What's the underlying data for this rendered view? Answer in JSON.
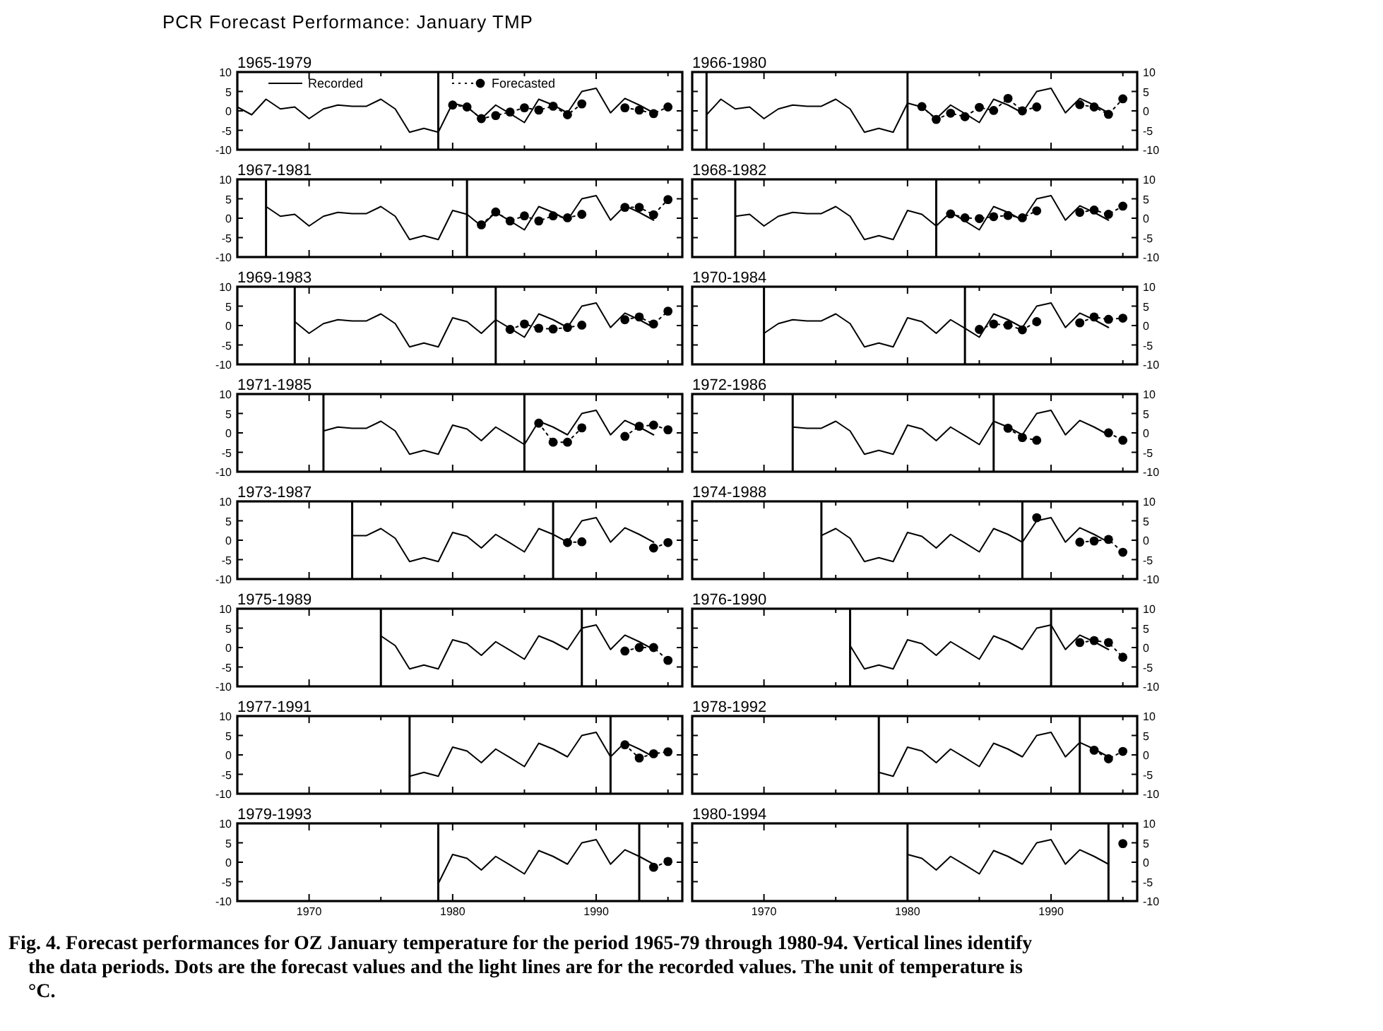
{
  "chart_data": [
    {
      "type": "line",
      "title": "1965-1979",
      "annotations": [
        "PCR Forecast Performance: January TMP"
      ],
      "legend": "top",
      "xlim": [
        1965,
        1996
      ],
      "xticks": [
        1970,
        1980,
        1990,
        {
          "value": 1965,
          "label": null
        },
        {
          "value": 1975,
          "label": null
        },
        {
          "value": 1985,
          "label": null
        },
        {
          "value": 1995,
          "label": null
        }
      ],
      "ylim": [
        -10,
        10
      ],
      "yticks": [
        -10,
        -5,
        0,
        5,
        10
      ],
      "tick_labels": "y",
      "ref_lines": [
        {
          "axis": "x",
          "value": 1979
        }
      ],
      "series": [
        {
          "name": "Recorded",
          "color": "#000000",
          "line_style": "solid",
          "marker": "none",
          "x": [
            1965,
            1966,
            1967,
            1968,
            1969,
            1970,
            1971,
            1972,
            1973,
            1974,
            1975,
            1976,
            1977,
            1978,
            1979,
            1980,
            1981,
            1982,
            1983,
            1984,
            1985,
            1986,
            1987,
            1988,
            1989,
            1990,
            1991,
            1992,
            1993,
            1994
          ],
          "values": [
            1,
            -1,
            3,
            0.5,
            1,
            -2,
            0.5,
            1.5,
            1.2,
            1.2,
            3,
            0.5,
            -5.5,
            -4.5,
            -5.5,
            2,
            1,
            -2,
            1.5,
            -0.7,
            -3,
            3,
            1.5,
            -0.5,
            5,
            5.8,
            -0.5,
            3.2,
            1.5,
            -0.5
          ]
        },
        {
          "name": "Forecasted",
          "color": "#000000",
          "line_style": "dotted",
          "marker": "circle",
          "x": [
            1980,
            1981,
            1982,
            1983,
            1984,
            1985,
            1986,
            1987,
            1988,
            1989,
            1990,
            1991,
            1992,
            1993,
            1994,
            1995
          ],
          "values": [
            1.5,
            1,
            -2,
            -1.2,
            -0.3,
            0.8,
            0.2,
            1.2,
            -1,
            1.8,
            null,
            null,
            0.8,
            0.2,
            -0.7,
            1
          ]
        }
      ]
    },
    {
      "type": "line",
      "title": "1966-1980",
      "xlim": [
        1965,
        1996
      ],
      "xticks": [
        1970,
        1980,
        1990,
        {
          "value": 1965,
          "label": null
        },
        {
          "value": 1975,
          "label": null
        },
        {
          "value": 1985,
          "label": null
        },
        {
          "value": 1995,
          "label": null
        }
      ],
      "ylim": [
        -10,
        10
      ],
      "yticks": [
        -10,
        -5,
        0,
        5,
        10
      ],
      "tick_labels": "y",
      "ref_lines": [
        {
          "axis": "x",
          "value": 1966
        },
        {
          "axis": "x",
          "value": 1980
        }
      ],
      "series": [
        {
          "color": "#000000",
          "line_style": "solid",
          "marker": "none",
          "x": [
            1966,
            1967,
            1968,
            1969,
            1970,
            1971,
            1972,
            1973,
            1974,
            1975,
            1976,
            1977,
            1978,
            1979,
            1980,
            1981,
            1982,
            1983,
            1984,
            1985,
            1986,
            1987,
            1988,
            1989,
            1990,
            1991,
            1992,
            1993,
            1994
          ],
          "values": [
            -1,
            3,
            0.5,
            1,
            -2,
            0.5,
            1.5,
            1.2,
            1.2,
            3,
            0.5,
            -5.5,
            -4.5,
            -5.5,
            2,
            1,
            -2,
            1.5,
            -0.7,
            -3,
            3,
            1.5,
            -0.5,
            5,
            5.8,
            -0.5,
            3.2,
            1.5,
            -0.5
          ]
        },
        {
          "color": "#000000",
          "line_style": "dotted",
          "marker": "circle",
          "x": [
            1981,
            1982,
            1983,
            1984,
            1985,
            1986,
            1987,
            1988,
            1989,
            1990,
            1991,
            1992,
            1993,
            1994,
            1995
          ],
          "values": [
            1.1,
            -2.2,
            -0.6,
            -1.5,
            0.9,
            0.1,
            3.2,
            0,
            1,
            null,
            null,
            1.6,
            1,
            -0.9,
            3.1
          ]
        }
      ]
    },
    {
      "type": "line",
      "title": "1967-1981",
      "xlim": [
        1965,
        1996
      ],
      "xticks": [
        1970,
        1980,
        1990,
        {
          "value": 1965,
          "label": null
        },
        {
          "value": 1975,
          "label": null
        },
        {
          "value": 1985,
          "label": null
        },
        {
          "value": 1995,
          "label": null
        }
      ],
      "ylim": [
        -10,
        10
      ],
      "yticks": [
        -10,
        -5,
        0,
        5,
        10
      ],
      "tick_labels": "y",
      "ref_lines": [
        {
          "axis": "x",
          "value": 1967
        },
        {
          "axis": "x",
          "value": 1981
        }
      ],
      "series": [
        {
          "color": "#000000",
          "line_style": "solid",
          "marker": "none",
          "x": [
            1967,
            1968,
            1969,
            1970,
            1971,
            1972,
            1973,
            1974,
            1975,
            1976,
            1977,
            1978,
            1979,
            1980,
            1981,
            1982,
            1983,
            1984,
            1985,
            1986,
            1987,
            1988,
            1989,
            1990,
            1991,
            1992,
            1993,
            1994
          ],
          "values": [
            3,
            0.5,
            1,
            -2,
            0.5,
            1.5,
            1.2,
            1.2,
            3,
            0.5,
            -5.5,
            -4.5,
            -5.5,
            2,
            1,
            -2,
            1.5,
            -0.7,
            -3,
            3,
            1.5,
            -0.5,
            5,
            5.8,
            -0.5,
            3.2,
            1.5,
            -0.5
          ]
        },
        {
          "color": "#000000",
          "line_style": "dotted",
          "marker": "circle",
          "x": [
            1982,
            1983,
            1984,
            1985,
            1986,
            1987,
            1988,
            1989,
            1990,
            1991,
            1992,
            1993,
            1994,
            1995
          ],
          "values": [
            -1.7,
            1.6,
            -0.7,
            0.6,
            -0.7,
            0.6,
            0.1,
            1,
            null,
            null,
            2.8,
            2.8,
            0.9,
            4.8
          ]
        }
      ]
    },
    {
      "type": "line",
      "title": "1968-1982",
      "xlim": [
        1965,
        1996
      ],
      "xticks": [
        1970,
        1980,
        1990,
        {
          "value": 1965,
          "label": null
        },
        {
          "value": 1975,
          "label": null
        },
        {
          "value": 1985,
          "label": null
        },
        {
          "value": 1995,
          "label": null
        }
      ],
      "ylim": [
        -10,
        10
      ],
      "yticks": [
        -10,
        -5,
        0,
        5,
        10
      ],
      "tick_labels": "y",
      "ref_lines": [
        {
          "axis": "x",
          "value": 1968
        },
        {
          "axis": "x",
          "value": 1982
        }
      ],
      "series": [
        {
          "color": "#000000",
          "line_style": "solid",
          "marker": "none",
          "x": [
            1968,
            1969,
            1970,
            1971,
            1972,
            1973,
            1974,
            1975,
            1976,
            1977,
            1978,
            1979,
            1980,
            1981,
            1982,
            1983,
            1984,
            1985,
            1986,
            1987,
            1988,
            1989,
            1990,
            1991,
            1992,
            1993,
            1994
          ],
          "values": [
            0.5,
            1,
            -2,
            0.5,
            1.5,
            1.2,
            1.2,
            3,
            0.5,
            -5.5,
            -4.5,
            -5.5,
            2,
            1,
            -2,
            1.5,
            -0.7,
            -3,
            3,
            1.5,
            -0.5,
            5,
            5.8,
            -0.5,
            3.2,
            1.5,
            -0.5
          ]
        },
        {
          "color": "#000000",
          "line_style": "dotted",
          "marker": "circle",
          "x": [
            1983,
            1984,
            1985,
            1986,
            1987,
            1988,
            1989,
            1990,
            1991,
            1992,
            1993,
            1994,
            1995
          ],
          "values": [
            1.1,
            0.1,
            -0.1,
            0.4,
            0.7,
            0.1,
            1.9,
            null,
            null,
            1.5,
            2.1,
            1,
            3.1
          ]
        }
      ]
    },
    {
      "type": "line",
      "title": "1969-1983",
      "xlim": [
        1965,
        1996
      ],
      "xticks": [
        1970,
        1980,
        1990,
        {
          "value": 1965,
          "label": null
        },
        {
          "value": 1975,
          "label": null
        },
        {
          "value": 1985,
          "label": null
        },
        {
          "value": 1995,
          "label": null
        }
      ],
      "ylim": [
        -10,
        10
      ],
      "yticks": [
        -10,
        -5,
        0,
        5,
        10
      ],
      "tick_labels": "y",
      "ref_lines": [
        {
          "axis": "x",
          "value": 1969
        },
        {
          "axis": "x",
          "value": 1983
        }
      ],
      "series": [
        {
          "color": "#000000",
          "line_style": "solid",
          "marker": "none",
          "x": [
            1969,
            1970,
            1971,
            1972,
            1973,
            1974,
            1975,
            1976,
            1977,
            1978,
            1979,
            1980,
            1981,
            1982,
            1983,
            1984,
            1985,
            1986,
            1987,
            1988,
            1989,
            1990,
            1991,
            1992,
            1993,
            1994
          ],
          "values": [
            1,
            -2,
            0.5,
            1.5,
            1.2,
            1.2,
            3,
            0.5,
            -5.5,
            -4.5,
            -5.5,
            2,
            1,
            -2,
            1.5,
            -0.7,
            -3,
            3,
            1.5,
            -0.5,
            5,
            5.8,
            -0.5,
            3.2,
            1.5,
            -0.5
          ]
        },
        {
          "color": "#000000",
          "line_style": "dotted",
          "marker": "circle",
          "x": [
            1984,
            1985,
            1986,
            1987,
            1988,
            1989,
            1990,
            1991,
            1992,
            1993,
            1994,
            1995
          ],
          "values": [
            -1,
            0.4,
            -0.7,
            -0.9,
            -0.5,
            0.1,
            null,
            null,
            1.5,
            2.2,
            0.4,
            3.7
          ]
        }
      ]
    },
    {
      "type": "line",
      "title": "1970-1984",
      "xlim": [
        1965,
        1996
      ],
      "xticks": [
        1970,
        1980,
        1990,
        {
          "value": 1965,
          "label": null
        },
        {
          "value": 1975,
          "label": null
        },
        {
          "value": 1985,
          "label": null
        },
        {
          "value": 1995,
          "label": null
        }
      ],
      "ylim": [
        -10,
        10
      ],
      "yticks": [
        -10,
        -5,
        0,
        5,
        10
      ],
      "tick_labels": "y",
      "ref_lines": [
        {
          "axis": "x",
          "value": 1970
        },
        {
          "axis": "x",
          "value": 1984
        }
      ],
      "series": [
        {
          "color": "#000000",
          "line_style": "solid",
          "marker": "none",
          "x": [
            1970,
            1971,
            1972,
            1973,
            1974,
            1975,
            1976,
            1977,
            1978,
            1979,
            1980,
            1981,
            1982,
            1983,
            1984,
            1985,
            1986,
            1987,
            1988,
            1989,
            1990,
            1991,
            1992,
            1993,
            1994
          ],
          "values": [
            -2,
            0.5,
            1.5,
            1.2,
            1.2,
            3,
            0.5,
            -5.5,
            -4.5,
            -5.5,
            2,
            1,
            -2,
            1.5,
            -0.7,
            -3,
            3,
            1.5,
            -0.5,
            5,
            5.8,
            -0.5,
            3.2,
            1.5,
            -0.5
          ]
        },
        {
          "color": "#000000",
          "line_style": "dotted",
          "marker": "circle",
          "x": [
            1985,
            1986,
            1987,
            1988,
            1989,
            1990,
            1991,
            1992,
            1993,
            1994,
            1995
          ],
          "values": [
            -1,
            0.4,
            0.1,
            -1.1,
            1,
            null,
            null,
            0.7,
            2.2,
            1.6,
            1.9
          ]
        }
      ]
    },
    {
      "type": "line",
      "title": "1971-1985",
      "xlim": [
        1965,
        1996
      ],
      "xticks": [
        1970,
        1980,
        1990,
        {
          "value": 1965,
          "label": null
        },
        {
          "value": 1975,
          "label": null
        },
        {
          "value": 1985,
          "label": null
        },
        {
          "value": 1995,
          "label": null
        }
      ],
      "ylim": [
        -10,
        10
      ],
      "yticks": [
        -10,
        -5,
        0,
        5,
        10
      ],
      "tick_labels": "y",
      "ref_lines": [
        {
          "axis": "x",
          "value": 1971
        },
        {
          "axis": "x",
          "value": 1985
        }
      ],
      "series": [
        {
          "color": "#000000",
          "line_style": "solid",
          "marker": "none",
          "x": [
            1971,
            1972,
            1973,
            1974,
            1975,
            1976,
            1977,
            1978,
            1979,
            1980,
            1981,
            1982,
            1983,
            1984,
            1985,
            1986,
            1987,
            1988,
            1989,
            1990,
            1991,
            1992,
            1993,
            1994
          ],
          "values": [
            0.5,
            1.5,
            1.2,
            1.2,
            3,
            0.5,
            -5.5,
            -4.5,
            -5.5,
            2,
            1,
            -2,
            1.5,
            -0.7,
            -3,
            3,
            1.5,
            -0.5,
            5,
            5.8,
            -0.5,
            3.2,
            1.5,
            -0.5
          ]
        },
        {
          "color": "#000000",
          "line_style": "dotted",
          "marker": "circle",
          "x": [
            1986,
            1987,
            1988,
            1989,
            1990,
            1991,
            1992,
            1993,
            1994,
            1995
          ],
          "values": [
            2.5,
            -2.4,
            -2.4,
            1.3,
            null,
            null,
            -0.9,
            1.7,
            2,
            0.8
          ]
        }
      ]
    },
    {
      "type": "line",
      "title": "1972-1986",
      "xlim": [
        1965,
        1996
      ],
      "xticks": [
        1970,
        1980,
        1990,
        {
          "value": 1965,
          "label": null
        },
        {
          "value": 1975,
          "label": null
        },
        {
          "value": 1985,
          "label": null
        },
        {
          "value": 1995,
          "label": null
        }
      ],
      "ylim": [
        -10,
        10
      ],
      "yticks": [
        -10,
        -5,
        0,
        5,
        10
      ],
      "tick_labels": "y",
      "ref_lines": [
        {
          "axis": "x",
          "value": 1972
        },
        {
          "axis": "x",
          "value": 1986
        }
      ],
      "series": [
        {
          "color": "#000000",
          "line_style": "solid",
          "marker": "none",
          "x": [
            1972,
            1973,
            1974,
            1975,
            1976,
            1977,
            1978,
            1979,
            1980,
            1981,
            1982,
            1983,
            1984,
            1985,
            1986,
            1987,
            1988,
            1989,
            1990,
            1991,
            1992,
            1993,
            1994
          ],
          "values": [
            1.5,
            1.2,
            1.2,
            3,
            0.5,
            -5.5,
            -4.5,
            -5.5,
            2,
            1,
            -2,
            1.5,
            -0.7,
            -3,
            3,
            1.5,
            -0.5,
            5,
            5.8,
            -0.5,
            3.2,
            1.5,
            -0.5
          ]
        },
        {
          "color": "#000000",
          "line_style": "dotted",
          "marker": "circle",
          "x": [
            1987,
            1988,
            1989,
            1990,
            1991,
            1992,
            1993,
            1994,
            1995
          ],
          "values": [
            1.2,
            -1.2,
            -1.9,
            null,
            null,
            null,
            null,
            0,
            -1.9
          ]
        }
      ]
    },
    {
      "type": "line",
      "title": "1973-1987",
      "xlim": [
        1965,
        1996
      ],
      "xticks": [
        1970,
        1980,
        1990,
        {
          "value": 1965,
          "label": null
        },
        {
          "value": 1975,
          "label": null
        },
        {
          "value": 1985,
          "label": null
        },
        {
          "value": 1995,
          "label": null
        }
      ],
      "ylim": [
        -10,
        10
      ],
      "yticks": [
        -10,
        -5,
        0,
        5,
        10
      ],
      "tick_labels": "y",
      "ref_lines": [
        {
          "axis": "x",
          "value": 1973
        },
        {
          "axis": "x",
          "value": 1987
        }
      ],
      "series": [
        {
          "color": "#000000",
          "line_style": "solid",
          "marker": "none",
          "x": [
            1973,
            1974,
            1975,
            1976,
            1977,
            1978,
            1979,
            1980,
            1981,
            1982,
            1983,
            1984,
            1985,
            1986,
            1987,
            1988,
            1989,
            1990,
            1991,
            1992,
            1993,
            1994
          ],
          "values": [
            1.2,
            1.2,
            3,
            0.5,
            -5.5,
            -4.5,
            -5.5,
            2,
            1,
            -2,
            1.5,
            -0.7,
            -3,
            3,
            1.5,
            -0.5,
            5,
            5.8,
            -0.5,
            3.2,
            1.5,
            -0.5
          ]
        },
        {
          "color": "#000000",
          "line_style": "dotted",
          "marker": "circle",
          "x": [
            1988,
            1989,
            1990,
            1991,
            1992,
            1993,
            1994,
            1995
          ],
          "values": [
            -0.6,
            -0.4,
            null,
            null,
            null,
            null,
            -2,
            -0.6
          ]
        }
      ]
    },
    {
      "type": "line",
      "title": "1974-1988",
      "xlim": [
        1965,
        1996
      ],
      "xticks": [
        1970,
        1980,
        1990,
        {
          "value": 1965,
          "label": null
        },
        {
          "value": 1975,
          "label": null
        },
        {
          "value": 1985,
          "label": null
        },
        {
          "value": 1995,
          "label": null
        }
      ],
      "ylim": [
        -10,
        10
      ],
      "yticks": [
        -10,
        -5,
        0,
        5,
        10
      ],
      "tick_labels": "y",
      "ref_lines": [
        {
          "axis": "x",
          "value": 1974
        },
        {
          "axis": "x",
          "value": 1988
        }
      ],
      "series": [
        {
          "color": "#000000",
          "line_style": "solid",
          "marker": "none",
          "x": [
            1974,
            1975,
            1976,
            1977,
            1978,
            1979,
            1980,
            1981,
            1982,
            1983,
            1984,
            1985,
            1986,
            1987,
            1988,
            1989,
            1990,
            1991,
            1992,
            1993,
            1994
          ],
          "values": [
            1.2,
            3,
            0.5,
            -5.5,
            -4.5,
            -5.5,
            2,
            1,
            -2,
            1.5,
            -0.7,
            -3,
            3,
            1.5,
            -0.5,
            5,
            5.8,
            -0.5,
            3.2,
            1.5,
            -0.5
          ]
        },
        {
          "color": "#000000",
          "line_style": "dotted",
          "marker": "circle",
          "x": [
            1989,
            1990,
            1991,
            1992,
            1993,
            1994,
            1995
          ],
          "values": [
            5.8,
            null,
            null,
            -0.5,
            -0.2,
            0.2,
            -3.1
          ]
        }
      ]
    },
    {
      "type": "line",
      "title": "1975-1989",
      "xlim": [
        1965,
        1996
      ],
      "xticks": [
        1970,
        1980,
        1990,
        {
          "value": 1965,
          "label": null
        },
        {
          "value": 1975,
          "label": null
        },
        {
          "value": 1985,
          "label": null
        },
        {
          "value": 1995,
          "label": null
        }
      ],
      "ylim": [
        -10,
        10
      ],
      "yticks": [
        -10,
        -5,
        0,
        5,
        10
      ],
      "tick_labels": "y",
      "ref_lines": [
        {
          "axis": "x",
          "value": 1975
        },
        {
          "axis": "x",
          "value": 1989
        }
      ],
      "series": [
        {
          "color": "#000000",
          "line_style": "solid",
          "marker": "none",
          "x": [
            1975,
            1976,
            1977,
            1978,
            1979,
            1980,
            1981,
            1982,
            1983,
            1984,
            1985,
            1986,
            1987,
            1988,
            1989,
            1990,
            1991,
            1992,
            1993,
            1994
          ],
          "values": [
            3,
            0.5,
            -5.5,
            -4.5,
            -5.5,
            2,
            1,
            -2,
            1.5,
            -0.7,
            -3,
            3,
            1.5,
            -0.5,
            5,
            5.8,
            -0.5,
            3.2,
            1.5,
            -0.5
          ]
        },
        {
          "color": "#000000",
          "line_style": "dotted",
          "marker": "circle",
          "x": [
            1992,
            1993,
            1994,
            1995
          ],
          "values": [
            -0.9,
            0,
            0,
            -3.3
          ]
        }
      ]
    },
    {
      "type": "line",
      "title": "1976-1990",
      "xlim": [
        1965,
        1996
      ],
      "xticks": [
        1970,
        1980,
        1990,
        {
          "value": 1965,
          "label": null
        },
        {
          "value": 1975,
          "label": null
        },
        {
          "value": 1985,
          "label": null
        },
        {
          "value": 1995,
          "label": null
        }
      ],
      "ylim": [
        -10,
        10
      ],
      "yticks": [
        -10,
        -5,
        0,
        5,
        10
      ],
      "tick_labels": "y",
      "ref_lines": [
        {
          "axis": "x",
          "value": 1976
        },
        {
          "axis": "x",
          "value": 1990
        }
      ],
      "series": [
        {
          "color": "#000000",
          "line_style": "solid",
          "marker": "none",
          "x": [
            1976,
            1977,
            1978,
            1979,
            1980,
            1981,
            1982,
            1983,
            1984,
            1985,
            1986,
            1987,
            1988,
            1989,
            1990,
            1991,
            1992,
            1993,
            1994
          ],
          "values": [
            0.5,
            -5.5,
            -4.5,
            -5.5,
            2,
            1,
            -2,
            1.5,
            -0.7,
            -3,
            3,
            1.5,
            -0.5,
            5,
            5.8,
            -0.5,
            3.2,
            1.5,
            -0.5
          ]
        },
        {
          "color": "#000000",
          "line_style": "dotted",
          "marker": "circle",
          "x": [
            1992,
            1993,
            1994,
            1995
          ],
          "values": [
            1.3,
            1.8,
            1.3,
            -2.5
          ]
        }
      ]
    },
    {
      "type": "line",
      "title": "1977-1991",
      "xlim": [
        1965,
        1996
      ],
      "xticks": [
        1970,
        1980,
        1990,
        {
          "value": 1965,
          "label": null
        },
        {
          "value": 1975,
          "label": null
        },
        {
          "value": 1985,
          "label": null
        },
        {
          "value": 1995,
          "label": null
        }
      ],
      "ylim": [
        -10,
        10
      ],
      "yticks": [
        -10,
        -5,
        0,
        5,
        10
      ],
      "tick_labels": "y",
      "ref_lines": [
        {
          "axis": "x",
          "value": 1977
        },
        {
          "axis": "x",
          "value": 1991
        }
      ],
      "series": [
        {
          "color": "#000000",
          "line_style": "solid",
          "marker": "none",
          "x": [
            1977,
            1978,
            1979,
            1980,
            1981,
            1982,
            1983,
            1984,
            1985,
            1986,
            1987,
            1988,
            1989,
            1990,
            1991,
            1992,
            1993,
            1994
          ],
          "values": [
            -5.5,
            -4.5,
            -5.5,
            2,
            1,
            -2,
            1.5,
            -0.7,
            -3,
            3,
            1.5,
            -0.5,
            5,
            5.8,
            -0.5,
            3.2,
            1.5,
            -0.5
          ]
        },
        {
          "color": "#000000",
          "line_style": "dotted",
          "marker": "circle",
          "x": [
            1992,
            1993,
            1994,
            1995
          ],
          "values": [
            2.6,
            -0.8,
            0.3,
            0.8
          ]
        }
      ]
    },
    {
      "type": "line",
      "title": "1978-1992",
      "xlim": [
        1965,
        1996
      ],
      "xticks": [
        1970,
        1980,
        1990,
        {
          "value": 1965,
          "label": null
        },
        {
          "value": 1975,
          "label": null
        },
        {
          "value": 1985,
          "label": null
        },
        {
          "value": 1995,
          "label": null
        }
      ],
      "ylim": [
        -10,
        10
      ],
      "yticks": [
        -10,
        -5,
        0,
        5,
        10
      ],
      "tick_labels": "y",
      "ref_lines": [
        {
          "axis": "x",
          "value": 1978
        },
        {
          "axis": "x",
          "value": 1992
        }
      ],
      "series": [
        {
          "color": "#000000",
          "line_style": "solid",
          "marker": "none",
          "x": [
            1978,
            1979,
            1980,
            1981,
            1982,
            1983,
            1984,
            1985,
            1986,
            1987,
            1988,
            1989,
            1990,
            1991,
            1992,
            1993,
            1994
          ],
          "values": [
            -4.5,
            -5.5,
            2,
            1,
            -2,
            1.5,
            -0.7,
            -3,
            3,
            1.5,
            -0.5,
            5,
            5.8,
            -0.5,
            3.2,
            1.5,
            -0.5
          ]
        },
        {
          "color": "#000000",
          "line_style": "dotted",
          "marker": "circle",
          "x": [
            1993,
            1994,
            1995
          ],
          "values": [
            1.2,
            -1,
            0.9
          ]
        }
      ]
    },
    {
      "type": "line",
      "title": "1979-1993",
      "xlim": [
        1965,
        1996
      ],
      "xticks": [
        1970,
        1980,
        1990,
        {
          "value": 1965,
          "label": null
        },
        {
          "value": 1975,
          "label": null
        },
        {
          "value": 1985,
          "label": null
        },
        {
          "value": 1995,
          "label": null
        }
      ],
      "ylim": [
        -10,
        10
      ],
      "yticks": [
        -10,
        -5,
        0,
        5,
        10
      ],
      "ref_lines": [
        {
          "axis": "x",
          "value": 1979
        },
        {
          "axis": "x",
          "value": 1993
        }
      ],
      "series": [
        {
          "color": "#000000",
          "line_style": "solid",
          "marker": "none",
          "x": [
            1979,
            1980,
            1981,
            1982,
            1983,
            1984,
            1985,
            1986,
            1987,
            1988,
            1989,
            1990,
            1991,
            1992,
            1993,
            1994
          ],
          "values": [
            -5.5,
            2,
            1,
            -2,
            1.5,
            -0.7,
            -3,
            3,
            1.5,
            -0.5,
            5,
            5.8,
            -0.5,
            3.2,
            1.5,
            -0.5
          ]
        },
        {
          "color": "#000000",
          "line_style": "dotted",
          "marker": "circle",
          "x": [
            1994,
            1995
          ],
          "values": [
            -1.3,
            0.2
          ]
        }
      ]
    },
    {
      "type": "line",
      "title": "1980-1994",
      "annotations": [
        "Fig. 4. Forecast performances for OZ January temperature for the period 1965-79 through 1980-94. Vertical lines identify the data periods. Dots are the forecast values and the light lines are for the recorded values. The unit of temperature is °C."
      ],
      "xlim": [
        1965,
        1996
      ],
      "xticks": [
        1970,
        1980,
        1990,
        {
          "value": 1965,
          "label": null
        },
        {
          "value": 1975,
          "label": null
        },
        {
          "value": 1985,
          "label": null
        },
        {
          "value": 1995,
          "label": null
        }
      ],
      "ylim": [
        -10,
        10
      ],
      "yticks": [
        -10,
        -5,
        0,
        5,
        10
      ],
      "ref_lines": [
        {
          "axis": "x",
          "value": 1980
        },
        {
          "axis": "x",
          "value": 1994
        }
      ],
      "series": [
        {
          "color": "#000000",
          "line_style": "solid",
          "marker": "none",
          "x": [
            1980,
            1981,
            1982,
            1983,
            1984,
            1985,
            1986,
            1987,
            1988,
            1989,
            1990,
            1991,
            1992,
            1993,
            1994
          ],
          "values": [
            2,
            1,
            -2,
            1.5,
            -0.7,
            -3,
            3,
            1.5,
            -0.5,
            5,
            5.8,
            -0.5,
            3.2,
            1.5,
            -0.5
          ]
        },
        {
          "color": "#000000",
          "line_style": "dotted",
          "marker": "circle",
          "x": [
            1995
          ],
          "values": [
            4.8
          ]
        }
      ]
    }
  ]
}
